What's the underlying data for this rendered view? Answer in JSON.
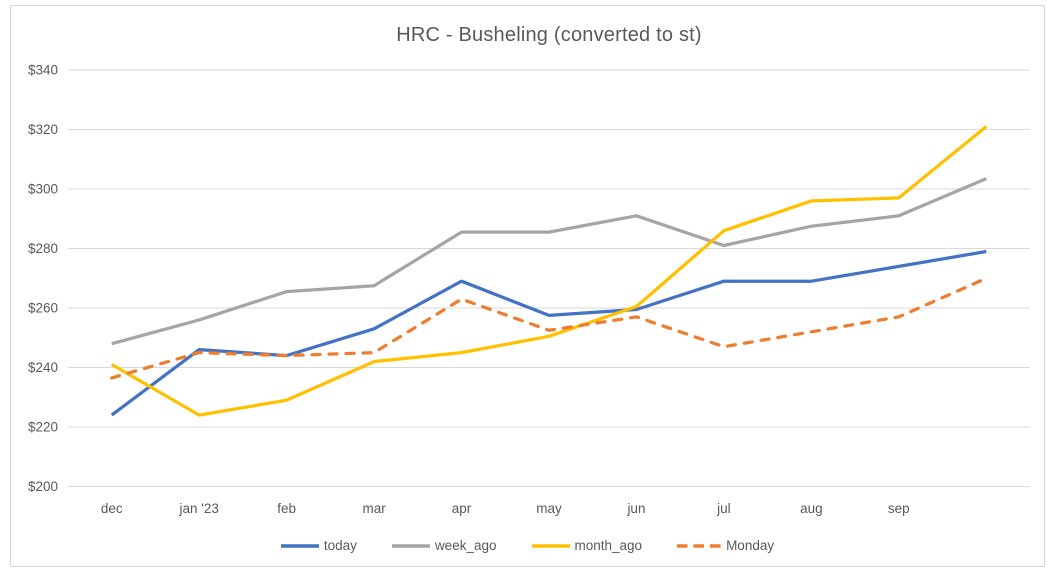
{
  "chart_data": {
    "type": "line",
    "title": "HRC - Busheling (converted to st)",
    "categories": [
      "dec",
      "jan '23",
      "feb",
      "mar",
      "apr",
      "may",
      "jun",
      "jul",
      "aug",
      "sep",
      ""
    ],
    "series": [
      {
        "name": "today",
        "color": "#4472C4",
        "dash": "solid",
        "values": [
          224,
          246,
          244,
          253,
          269,
          257.5,
          259.5,
          269,
          269,
          274,
          279
        ]
      },
      {
        "name": "week_ago",
        "color": "#A5A5A5",
        "dash": "solid",
        "values": [
          248,
          256,
          265.5,
          267.5,
          285.5,
          285.5,
          291,
          281,
          287.5,
          291,
          303.5
        ]
      },
      {
        "name": "month_ago",
        "color": "#FFC000",
        "dash": "solid",
        "values": [
          241,
          224,
          229,
          242,
          245,
          250.5,
          260.5,
          286,
          296,
          297,
          321
        ]
      },
      {
        "name": "Monday",
        "color": "#ED7D31",
        "dash": "dashed",
        "values": [
          236.5,
          245,
          244,
          245,
          263,
          252.5,
          257,
          247,
          252,
          257,
          270
        ]
      }
    ],
    "y_axis": {
      "min": 200,
      "max": 340,
      "step": 20,
      "tick_labels": [
        "$200",
        "$220",
        "$240",
        "$260",
        "$280",
        "$300",
        "$320",
        "$340"
      ]
    },
    "legend_position": "bottom",
    "grid": "horizontal",
    "colors": {
      "gridline": "#D9D9D9",
      "axis_text": "#595959",
      "title_text": "#595959",
      "frame_border": "#D7D7D7",
      "background": "#FFFFFF"
    }
  }
}
